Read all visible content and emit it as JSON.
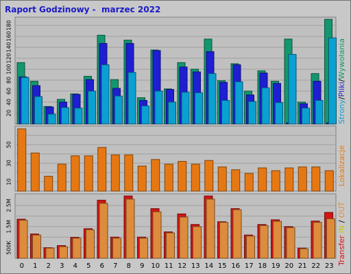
{
  "title": "Raport Godzinowy -  marzec 2022",
  "colors": {
    "background": "#c8c8c8",
    "plot_bg": "#c0c0c0",
    "title": "#1a1ac8",
    "strony": "#0aa0d2",
    "pliki": "#1e1ed2",
    "wywolania": "#14966e",
    "lokalizacje": "#e67814",
    "transfer": "#d21414",
    "in": "#c8c800",
    "out": "#dc8c3c"
  },
  "chart_data": [
    {
      "type": "bar",
      "name": "hits",
      "categories": [
        "0",
        "1",
        "2",
        "3",
        "4",
        "5",
        "6",
        "7",
        "8",
        "9",
        "10",
        "11",
        "12",
        "13",
        "14",
        "15",
        "16",
        "17",
        "18",
        "19",
        "20",
        "21",
        "22",
        "23"
      ],
      "series": [
        {
          "name": "Wywołania",
          "values": [
            112,
            78,
            32,
            45,
            55,
            87,
            162,
            81,
            153,
            48,
            135,
            64,
            112,
            100,
            155,
            79,
            110,
            60,
            97,
            78,
            155,
            40,
            92,
            191
          ]
        },
        {
          "name": "Pliki",
          "values": [
            86,
            70,
            31,
            40,
            54,
            81,
            147,
            65,
            147,
            43,
            134,
            63,
            104,
            95,
            132,
            76,
            108,
            53,
            93,
            74,
            2,
            37,
            78,
            2
          ]
        },
        {
          "name": "Strony",
          "values": [
            85,
            50,
            18,
            30,
            29,
            60,
            108,
            51,
            94,
            33,
            60,
            40,
            58,
            57,
            92,
            43,
            77,
            41,
            66,
            39,
            127,
            29,
            43,
            157
          ]
        }
      ],
      "ylim": [
        0,
        195
      ],
      "yticks": [
        20,
        40,
        60,
        80,
        100,
        120,
        140,
        160,
        180
      ],
      "legend": [
        "Strony",
        "Pliki",
        "Wywołania"
      ]
    },
    {
      "type": "bar",
      "name": "visits",
      "categories": [
        "0",
        "1",
        "2",
        "3",
        "4",
        "5",
        "6",
        "7",
        "8",
        "9",
        "10",
        "11",
        "12",
        "13",
        "14",
        "15",
        "16",
        "17",
        "18",
        "19",
        "20",
        "21",
        "22",
        "23"
      ],
      "series": [
        {
          "name": "Lokalizacje",
          "values": [
            67,
            41,
            16,
            29,
            38,
            38,
            47,
            39,
            39,
            27,
            34,
            29,
            32,
            29,
            33,
            26,
            23,
            19,
            25,
            22,
            25,
            26,
            26,
            22
          ]
        }
      ],
      "ylim": [
        0,
        70
      ],
      "yticks": [
        10,
        20,
        30,
        40,
        50,
        60
      ],
      "yticklabels": [
        "10",
        "",
        "30",
        "",
        "50",
        ""
      ],
      "legend": [
        "Lokalizacje"
      ]
    },
    {
      "type": "bar",
      "name": "transfer",
      "unit": "MB",
      "categories": [
        "0",
        "1",
        "2",
        "3",
        "4",
        "5",
        "6",
        "7",
        "8",
        "9",
        "10",
        "11",
        "12",
        "13",
        "14",
        "15",
        "16",
        "17",
        "18",
        "19",
        "20",
        "21",
        "22",
        "23"
      ],
      "series": [
        {
          "name": "Transfer",
          "values": [
            1.85,
            1.15,
            0.5,
            0.6,
            0.99,
            1.4,
            2.75,
            1.0,
            2.95,
            1.0,
            2.35,
            1.25,
            2.1,
            1.6,
            2.95,
            1.73,
            2.35,
            1.1,
            1.6,
            1.82,
            1.5,
            0.48,
            1.76,
            2.17
          ]
        },
        {
          "name": "OUT",
          "values": [
            1.8,
            1.1,
            0.48,
            0.55,
            0.95,
            1.35,
            2.6,
            0.95,
            2.8,
            0.95,
            2.2,
            1.2,
            1.95,
            1.5,
            2.8,
            1.7,
            2.3,
            1.05,
            1.55,
            1.75,
            1.45,
            0.45,
            1.7,
            1.87
          ]
        }
      ],
      "ylim": [
        0,
        3.05
      ],
      "yticks": [
        0.5,
        1.0,
        1.5,
        2.0,
        2.5
      ],
      "yticklabels": [
        "500K",
        "",
        "1.5M",
        "",
        "2.5M"
      ],
      "legend": [
        "Transfer",
        "IN",
        "OUT"
      ]
    }
  ]
}
